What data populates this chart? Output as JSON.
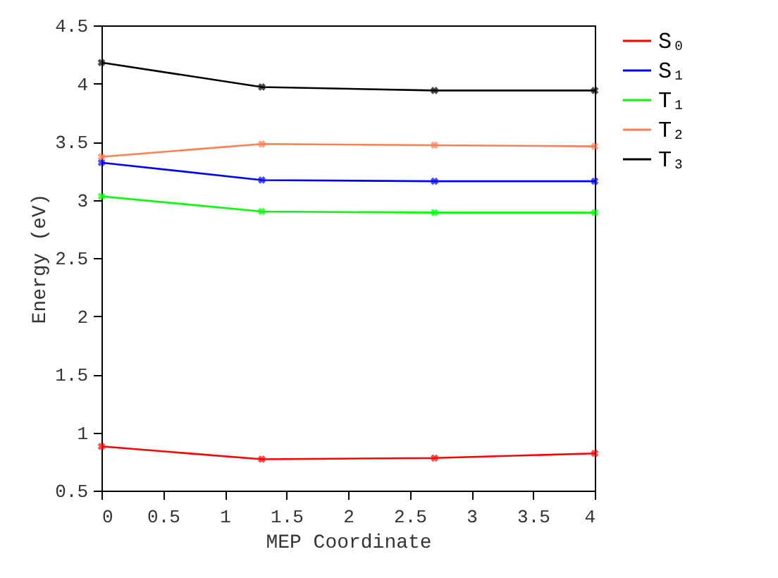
{
  "chart_data": {
    "type": "line",
    "xlabel": "MEP Coordinate",
    "ylabel": "Energy (eV)",
    "x": [
      0,
      1.3,
      2.7,
      4.0
    ],
    "series": [
      {
        "name": "S₀",
        "color": "#ff0000",
        "values": [
          0.88,
          0.77,
          0.78,
          0.82
        ]
      },
      {
        "name": "S₁",
        "color": "#0000ff",
        "values": [
          3.32,
          3.17,
          3.16,
          3.16
        ]
      },
      {
        "name": "T₁",
        "color": "#00ff00",
        "values": [
          3.03,
          2.9,
          2.89,
          2.89
        ]
      },
      {
        "name": "T₂",
        "color": "#ff7f50",
        "values": [
          3.37,
          3.48,
          3.47,
          3.46
        ]
      },
      {
        "name": "T₃",
        "color": "#000000",
        "values": [
          4.18,
          3.97,
          3.94,
          3.94
        ]
      }
    ],
    "xlim": [
      0,
      4
    ],
    "xticks": [
      0,
      0.5,
      1,
      1.5,
      2,
      2.5,
      3,
      3.5,
      4
    ],
    "ylim": [
      0.5,
      4.5
    ],
    "yticks": [
      0.5,
      1,
      1.5,
      2,
      2.5,
      3,
      3.5,
      4,
      4.5
    ],
    "legend": "right",
    "marker": "cross",
    "line_style": "solid",
    "grid": false
  }
}
